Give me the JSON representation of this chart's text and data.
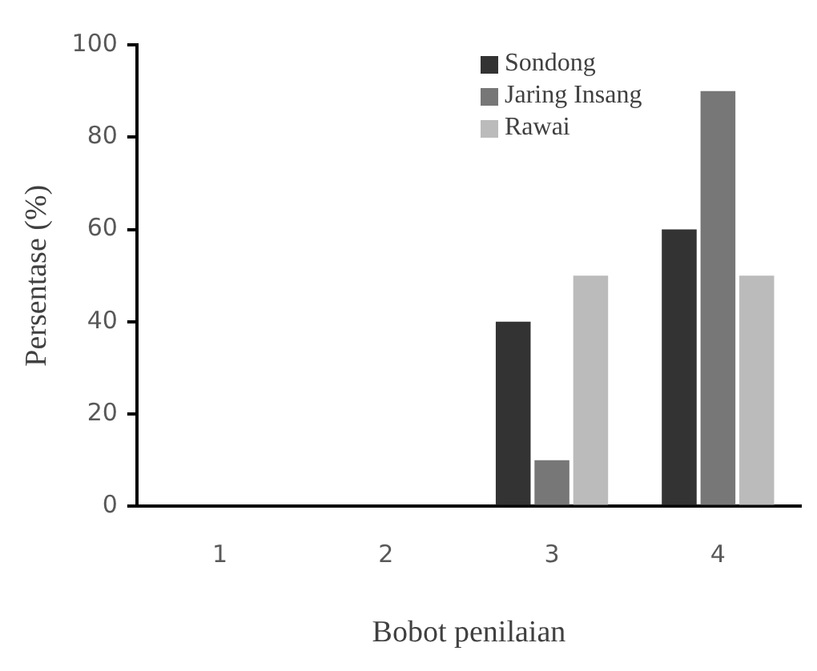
{
  "chart_data": {
    "type": "bar",
    "xlabel": "Bobot penilaian",
    "ylabel": "Persentase (%)",
    "categories": [
      "1",
      "2",
      "3",
      "4"
    ],
    "series": [
      {
        "name": "Sondong",
        "color": "#333333",
        "values": [
          0,
          0,
          40,
          60
        ]
      },
      {
        "name": "Jaring Insang",
        "color": "#777777",
        "values": [
          0,
          0,
          10,
          90
        ]
      },
      {
        "name": "Rawai",
        "color": "#bbbbbb",
        "values": [
          0,
          0,
          50,
          50
        ]
      }
    ],
    "ylim": [
      0,
      100
    ],
    "yticks": [
      0,
      20,
      40,
      60,
      80,
      100
    ],
    "grid": false,
    "legend": "top right"
  }
}
